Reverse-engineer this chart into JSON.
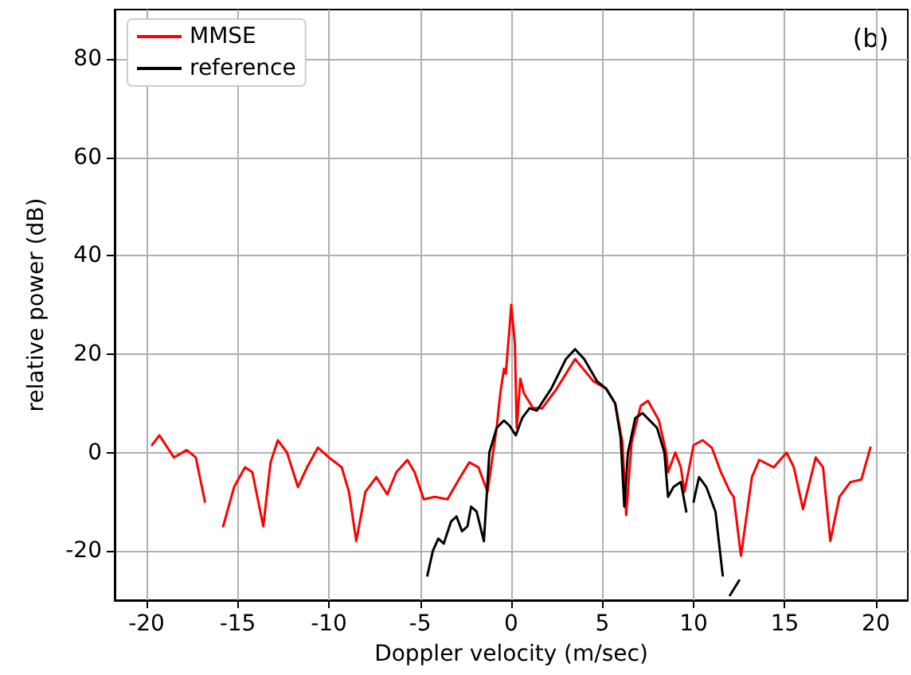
{
  "chart_data": {
    "type": "line",
    "xlabel": "Doppler velocity (m/sec)",
    "ylabel": "relative power (dB)",
    "annotations": [
      "(b)"
    ],
    "xlim": [
      -21.75,
      21.75
    ],
    "ylim": [
      -30,
      90
    ],
    "xticks": [
      -20,
      -15,
      -10,
      -5,
      0,
      5,
      10,
      15,
      20
    ],
    "yticks": [
      -20,
      0,
      20,
      40,
      60,
      80
    ],
    "grid": true,
    "legend": "top left",
    "marker": "none",
    "line_style": "solid",
    "series": [
      {
        "name": "MMSE",
        "color": "#ff0000",
        "x": [
          -19.7,
          -19.3,
          -18.5,
          -17.8,
          -17.3,
          -16.8,
          -16.3,
          -15.8,
          -15.2,
          -14.6,
          -14.2,
          -13.6,
          -13.2,
          -12.8,
          -12.3,
          -11.7,
          -11.2,
          -10.6,
          -10,
          -9.3,
          -8.9,
          -8.5,
          -8,
          -7.4,
          -6.8,
          -6.3,
          -5.7,
          -5.3,
          -4.8,
          -4.2,
          -3.5,
          -2.8,
          -2.3,
          -1.8,
          -1.3,
          -0.8,
          -0.6,
          -0.4,
          -0.3,
          -0.1,
          0,
          0.2,
          0.3,
          0.5,
          0.7,
          1.2,
          1.7,
          2.5,
          3.5,
          4.5,
          5.2,
          5.7,
          6.1,
          6.3,
          6.6,
          7.1,
          7.5,
          8.1,
          8.5,
          8.6,
          9,
          9.3,
          9.5,
          10,
          10.5,
          11,
          11.5,
          12,
          12.2,
          12.6,
          13.2,
          13.6,
          14.4,
          15.1,
          15.5,
          16,
          16.7,
          17.1,
          17.5,
          18,
          18.6,
          19.2,
          19.7
        ],
        "values": [
          1.5,
          3.5,
          -1,
          0.5,
          -1,
          -10,
          null,
          -15,
          -7,
          -3,
          -4,
          -15,
          -2,
          2.5,
          0,
          -7,
          -3,
          1,
          -1,
          -3,
          -8,
          -18,
          -8,
          -5,
          -8.5,
          -4,
          -1.5,
          -4,
          -9.5,
          -9,
          -9.5,
          -5,
          -2,
          -3,
          -8,
          5,
          12,
          17,
          16,
          25,
          30,
          22,
          5,
          15,
          12,
          9,
          9,
          13,
          19,
          14.5,
          13,
          10,
          2,
          -12.7,
          2,
          9.5,
          10.5,
          6.5,
          0,
          -4,
          0,
          -3,
          -8,
          1.5,
          2.5,
          1,
          -4,
          -8,
          -9,
          -21,
          -5,
          -1.5,
          -3,
          0,
          -3,
          -11.5,
          -1,
          -3,
          -18,
          -9,
          -6,
          -5.5,
          1
        ]
      },
      {
        "name": "reference",
        "color": "#000000",
        "x": [
          -4.6,
          -4.3,
          -4,
          -3.7,
          -3.3,
          -3,
          -2.7,
          -2.4,
          -2.2,
          -1.9,
          -1.5,
          -1.2,
          -0.8,
          -0.4,
          -0.1,
          0.25,
          0.6,
          1,
          1.4,
          2.2,
          3,
          3.5,
          4,
          4.7,
          5.2,
          5.7,
          6,
          6.2,
          6.4,
          6.8,
          7.2,
          8,
          8.4,
          8.6,
          8.9,
          9.3,
          9.6,
          9.7,
          10,
          10.3,
          10.7,
          11.2,
          11.6,
          11.8,
          12,
          12.5
        ],
        "values": [
          -25,
          -20,
          -17.5,
          -18.5,
          -14,
          -13,
          -16,
          -15,
          -11,
          -12,
          -18,
          0,
          5,
          6.5,
          5.5,
          3.5,
          7,
          9,
          8.5,
          13,
          19,
          21,
          19,
          14.5,
          13,
          10,
          3,
          -11,
          0,
          7,
          8,
          5,
          0,
          -9,
          -7,
          -6,
          -12,
          null,
          -10,
          -5,
          -7,
          -12,
          -25,
          null,
          -29,
          -26
        ]
      }
    ]
  }
}
